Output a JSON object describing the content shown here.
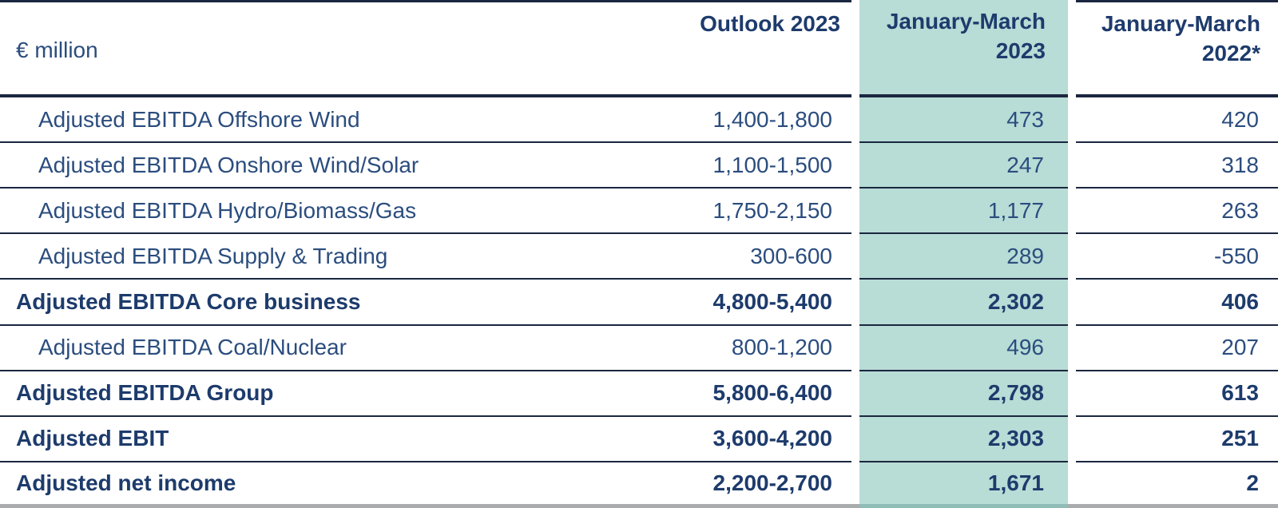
{
  "colors": {
    "navy_text": "#2b4d7e",
    "navy_text_bold": "#1d3b6c",
    "teal_highlight_bg": "#b8dcd6",
    "separator_line_navy": "#1b2740",
    "bottom_border_gray": "#a9abad",
    "bottom_border_teal": "#8fbcb6"
  },
  "table": {
    "unit_label": "€ million",
    "columns": [
      {
        "id": "outlook",
        "label": "Outlook 2023",
        "highlighted": false
      },
      {
        "id": "q1_2023",
        "label_line1": "January-March",
        "label_line2": "2023",
        "highlighted": true
      },
      {
        "id": "q1_2022",
        "label_line1": "January-March",
        "label_line2": "2022*",
        "highlighted": false
      }
    ],
    "rows": [
      {
        "label": "Adjusted EBITDA Offshore Wind",
        "outlook": "1,400-1,800",
        "q1_2023": "473",
        "q1_2022": "420",
        "bold": false,
        "indent": true
      },
      {
        "label": "Adjusted EBITDA Onshore Wind/Solar",
        "outlook": "1,100-1,500",
        "q1_2023": "247",
        "q1_2022": "318",
        "bold": false,
        "indent": true
      },
      {
        "label": "Adjusted EBITDA Hydro/Biomass/Gas",
        "outlook": "1,750-2,150",
        "q1_2023": "1,177",
        "q1_2022": "263",
        "bold": false,
        "indent": true
      },
      {
        "label": "Adjusted EBITDA Supply & Trading",
        "outlook": "300-600",
        "q1_2023": "289",
        "q1_2022": "-550",
        "bold": false,
        "indent": true
      },
      {
        "label": "Adjusted EBITDA Core business",
        "outlook": "4,800-5,400",
        "q1_2023": "2,302",
        "q1_2022": "406",
        "bold": true,
        "indent": false
      },
      {
        "label": "Adjusted EBITDA Coal/Nuclear",
        "outlook": "800-1,200",
        "q1_2023": "496",
        "q1_2022": "207",
        "bold": false,
        "indent": true
      },
      {
        "label": "Adjusted EBITDA Group",
        "outlook": "5,800-6,400",
        "q1_2023": "2,798",
        "q1_2022": "613",
        "bold": true,
        "indent": false
      },
      {
        "label": "Adjusted EBIT",
        "outlook": "3,600-4,200",
        "q1_2023": "2,303",
        "q1_2022": "251",
        "bold": true,
        "indent": false
      },
      {
        "label": "Adjusted net income",
        "outlook": "2,200-2,700",
        "q1_2023": "1,671",
        "q1_2022": "2",
        "bold": true,
        "indent": false
      }
    ]
  },
  "chart_data": {
    "type": "table",
    "title": "",
    "unit": "€ million",
    "columns": [
      "€ million",
      "Outlook 2023",
      "January-March 2023",
      "January-March 2022*"
    ],
    "highlighted_column": "January-March 2023",
    "rows": [
      [
        "Adjusted EBITDA Offshore Wind",
        "1,400-1,800",
        473,
        420
      ],
      [
        "Adjusted EBITDA Onshore Wind/Solar",
        "1,100-1,500",
        247,
        318
      ],
      [
        "Adjusted EBITDA Hydro/Biomass/Gas",
        "1,750-2,150",
        1177,
        263
      ],
      [
        "Adjusted EBITDA Supply & Trading",
        "300-600",
        289,
        -550
      ],
      [
        "Adjusted EBITDA Core business",
        "4,800-5,400",
        2302,
        406
      ],
      [
        "Adjusted EBITDA Coal/Nuclear",
        "800-1,200",
        496,
        207
      ],
      [
        "Adjusted EBITDA Group",
        "5,800-6,400",
        2798,
        613
      ],
      [
        "Adjusted EBIT",
        "3,600-4,200",
        2303,
        251
      ],
      [
        "Adjusted net income",
        "2,200-2,700",
        1671,
        2
      ]
    ],
    "bold_rows": [
      "Adjusted EBITDA Core business",
      "Adjusted EBITDA Group",
      "Adjusted EBIT",
      "Adjusted net income"
    ]
  }
}
